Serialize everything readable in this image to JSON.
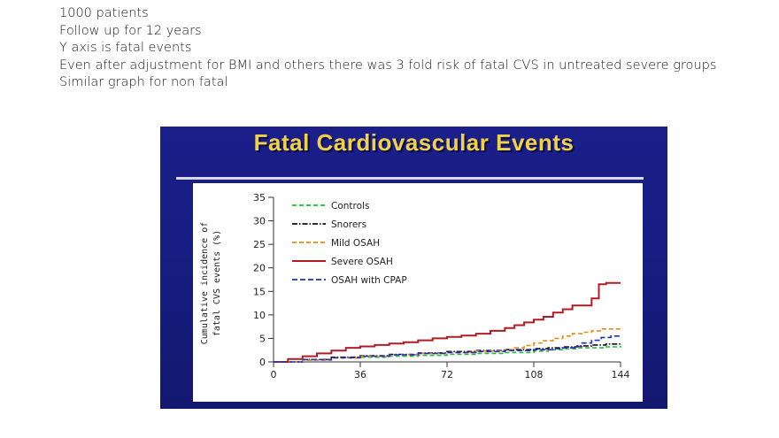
{
  "notes": [
    "1000 patients",
    "Follow up for 12 years",
    "Y axis is fatal events",
    "Even after adjustment for BMI and others  there was 3 fold risk of fatal CVS in untreated severe groups",
    "Similar graph for  non fatal"
  ],
  "slide": {
    "background": "#1a1f8a",
    "title_color": "#f2d14a"
  },
  "chart_data": {
    "type": "line",
    "title": "Fatal Cardiovascular Events",
    "xlabel": "",
    "ylabel_lines": [
      "Cumulative incidence of",
      "fatal CVS events (%)"
    ],
    "xlim": [
      0,
      144
    ],
    "ylim": [
      0,
      35
    ],
    "x_ticks": [
      0,
      36,
      72,
      108,
      144
    ],
    "y_ticks": [
      0,
      5,
      10,
      15,
      20,
      25,
      30,
      35
    ],
    "legend_position": "top-left",
    "grid": false,
    "series": [
      {
        "name": "Controls",
        "color": "#2db83d",
        "dash": "5,3",
        "x": [
          0,
          12,
          24,
          36,
          48,
          60,
          72,
          84,
          96,
          108,
          114,
          120,
          126,
          132,
          138,
          144
        ],
        "y": [
          0,
          0.4,
          0.8,
          1.0,
          1.2,
          1.4,
          1.6,
          1.8,
          2.0,
          2.3,
          2.6,
          2.8,
          3.0,
          3.0,
          3.2,
          3.4
        ]
      },
      {
        "name": "Snorers",
        "color": "#111111",
        "dash": "6,2,1.5,2",
        "x": [
          0,
          12,
          24,
          36,
          48,
          60,
          72,
          84,
          96,
          108,
          114,
          120,
          126,
          132,
          138,
          144
        ],
        "y": [
          0,
          0.5,
          1.0,
          1.3,
          1.6,
          1.9,
          2.2,
          2.4,
          2.6,
          2.8,
          3.0,
          3.2,
          3.4,
          3.6,
          3.8,
          4.0
        ]
      },
      {
        "name": "Mild OSAH",
        "color": "#e58a1f",
        "dash": "5,3",
        "x": [
          0,
          12,
          24,
          36,
          48,
          60,
          72,
          84,
          96,
          100,
          104,
          108,
          112,
          116,
          120,
          124,
          128,
          132,
          136,
          144
        ],
        "y": [
          0,
          0.4,
          0.8,
          1.2,
          1.5,
          1.8,
          2.0,
          2.3,
          2.6,
          3.0,
          3.5,
          4.0,
          4.5,
          5.0,
          5.5,
          6.0,
          6.3,
          6.6,
          7.0,
          7.0
        ]
      },
      {
        "name": "Severe OSAH",
        "color": "#b01c24",
        "dash": "",
        "x": [
          0,
          6,
          12,
          18,
          24,
          30,
          36,
          42,
          48,
          54,
          60,
          66,
          72,
          78,
          84,
          90,
          96,
          100,
          104,
          108,
          112,
          116,
          120,
          124,
          128,
          132,
          135,
          138,
          141,
          144
        ],
        "y": [
          0,
          0.6,
          1.2,
          1.8,
          2.4,
          3.0,
          3.3,
          3.6,
          3.9,
          4.2,
          4.6,
          5.0,
          5.3,
          5.6,
          6.0,
          6.6,
          7.2,
          7.8,
          8.4,
          9.0,
          9.6,
          10.5,
          11.2,
          12.0,
          12.0,
          13.5,
          16.5,
          16.8,
          16.8,
          16.8
        ]
      },
      {
        "name": "OSAH with CPAP",
        "color": "#2231b5",
        "dash": "6,3",
        "x": [
          0,
          12,
          24,
          36,
          48,
          60,
          72,
          84,
          96,
          108,
          116,
          120,
          126,
          128,
          132,
          136,
          140,
          144
        ],
        "y": [
          0,
          0.5,
          0.9,
          1.2,
          1.5,
          1.8,
          2.0,
          2.2,
          2.4,
          2.6,
          2.8,
          3.0,
          3.3,
          4.0,
          4.6,
          5.2,
          5.5,
          5.5
        ]
      }
    ]
  }
}
